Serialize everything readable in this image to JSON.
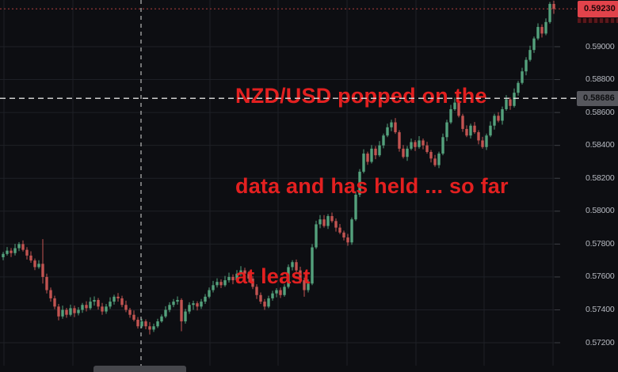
{
  "annotation": {
    "lines": [
      "NZD/USD popped on the",
      "data and has held ... so far",
      "at least"
    ],
    "color": "#e32020"
  },
  "price_axis": {
    "tick_labels": [
      "0.59000",
      "0.58800",
      "0.58600",
      "0.58400",
      "0.58200",
      "0.58000",
      "0.57800",
      "0.57600",
      "0.57400",
      "0.57200"
    ],
    "last_price_badge": {
      "text": "0.59230",
      "bg": "#e2434b",
      "fg": "#1d0709"
    },
    "level_badge": {
      "text": "0.58686",
      "bg": "#56575d",
      "fg": "#0d0e10"
    },
    "text_color": "#b6b9c0"
  },
  "colors": {
    "background": "#0d0e12",
    "grid": "#1e2026",
    "candle_up": "#54a17c",
    "candle_down": "#c25451",
    "current_price_line": "#9e3a3a",
    "level_line": "#e2e2e2",
    "session_line": "#c9c9c9",
    "tick_mark": "#3c3e44"
  },
  "chart_data": {
    "type": "candlestick",
    "instrument": "NZD/USD",
    "title": "NZD/USD popped on the data and has held ... so far at least",
    "ylim": [
      0.5702,
      0.59285
    ],
    "y_ticks": [
      0.59,
      0.588,
      0.586,
      0.584,
      0.582,
      0.58,
      0.578,
      0.576,
      0.574,
      0.572
    ],
    "current_price": 0.5923,
    "marked_level": 0.58686,
    "grid": true,
    "x_axis_labels_visible": false,
    "price_unit": 1e-05,
    "candles_ohlc_units": [
      [
        57720,
        57752,
        57702,
        57740
      ],
      [
        57740,
        57782,
        57730,
        57760
      ],
      [
        57760,
        57776,
        57721,
        57745
      ],
      [
        57745,
        57801,
        57731,
        57775
      ],
      [
        57775,
        57812,
        57757,
        57800
      ],
      [
        57800,
        57822,
        57755,
        57765
      ],
      [
        57765,
        57781,
        57706,
        57730
      ],
      [
        57730,
        57756,
        57686,
        57700
      ],
      [
        57700,
        57712,
        57642,
        57660
      ],
      [
        57660,
        57702,
        57650,
        57680
      ],
      [
        57680,
        57830,
        57560,
        57600
      ],
      [
        57600,
        57620,
        57500,
        57520
      ],
      [
        57520,
        57536,
        57450,
        57470
      ],
      [
        57470,
        57486,
        57404,
        57420
      ],
      [
        57420,
        57436,
        57336,
        57360
      ],
      [
        57360,
        57426,
        57346,
        57400
      ],
      [
        57400,
        57412,
        57352,
        57370
      ],
      [
        57370,
        57432,
        57360,
        57410
      ],
      [
        57410,
        57426,
        57356,
        57380
      ],
      [
        57380,
        57416,
        57366,
        57400
      ],
      [
        57400,
        57442,
        57382,
        57430
      ],
      [
        57430,
        57452,
        57390,
        57410
      ],
      [
        57410,
        57476,
        57400,
        57450
      ],
      [
        57450,
        57482,
        57426,
        57460
      ],
      [
        57460,
        57472,
        57402,
        57420
      ],
      [
        57420,
        57442,
        57370,
        57390
      ],
      [
        57390,
        57436,
        57376,
        57420
      ],
      [
        57420,
        57476,
        57406,
        57450
      ],
      [
        57450,
        57492,
        57432,
        57480
      ],
      [
        57480,
        57502,
        57450,
        57470
      ],
      [
        57470,
        57486,
        57416,
        57430
      ],
      [
        57430,
        57456,
        57386,
        57400
      ],
      [
        57400,
        57412,
        57352,
        57370
      ],
      [
        57370,
        57396,
        57330,
        57340
      ],
      [
        57340,
        57356,
        57286,
        57300
      ],
      [
        57300,
        57346,
        57290,
        57330
      ],
      [
        57330,
        57342,
        57282,
        57300
      ],
      [
        57300,
        57326,
        57250,
        57280
      ],
      [
        57280,
        57316,
        57266,
        57300
      ],
      [
        57300,
        57346,
        57290,
        57330
      ],
      [
        57330,
        57372,
        57322,
        57360
      ],
      [
        57360,
        57422,
        57350,
        57400
      ],
      [
        57400,
        57446,
        57386,
        57430
      ],
      [
        57430,
        57466,
        57416,
        57450
      ],
      [
        57450,
        57482,
        57432,
        57460
      ],
      [
        57460,
        57470,
        57270,
        57330
      ],
      [
        57330,
        57406,
        57316,
        57390
      ],
      [
        57390,
        57446,
        57376,
        57430
      ],
      [
        57430,
        57456,
        57400,
        57440
      ],
      [
        57440,
        57452,
        57396,
        57420
      ],
      [
        57420,
        57466,
        57406,
        57450
      ],
      [
        57450,
        57496,
        57436,
        57480
      ],
      [
        57480,
        57536,
        57470,
        57520
      ],
      [
        57520,
        57576,
        57506,
        57550
      ],
      [
        57550,
        57592,
        57536,
        57570
      ],
      [
        57570,
        57586,
        57532,
        57550
      ],
      [
        57550,
        57606,
        57540,
        57580
      ],
      [
        57580,
        57626,
        57566,
        57600
      ],
      [
        57600,
        57616,
        57556,
        57580
      ],
      [
        57580,
        57642,
        57570,
        57620
      ],
      [
        57620,
        57666,
        57606,
        57640
      ],
      [
        57640,
        57656,
        57596,
        57620
      ],
      [
        57620,
        57636,
        57566,
        57590
      ],
      [
        57590,
        57606,
        57526,
        57540
      ],
      [
        57540,
        57556,
        57466,
        57490
      ],
      [
        57490,
        57506,
        57436,
        57450
      ],
      [
        57450,
        57466,
        57400,
        57420
      ],
      [
        57420,
        57486,
        57410,
        57470
      ],
      [
        57470,
        57516,
        57456,
        57500
      ],
      [
        57500,
        57532,
        57476,
        57520
      ],
      [
        57520,
        57536,
        57472,
        57490
      ],
      [
        57490,
        57556,
        57480,
        57540
      ],
      [
        57540,
        57676,
        57530,
        57660
      ],
      [
        57660,
        57702,
        57640,
        57690
      ],
      [
        57690,
        57706,
        57620,
        57640
      ],
      [
        57640,
        57662,
        57560,
        57580
      ],
      [
        57580,
        57596,
        57480,
        57520
      ],
      [
        57520,
        57586,
        57506,
        57560
      ],
      [
        57560,
        57800,
        57550,
        57780
      ],
      [
        57780,
        57942,
        57770,
        57920
      ],
      [
        57920,
        57976,
        57896,
        57950
      ],
      [
        57950,
        57976,
        57900,
        57910
      ],
      [
        57910,
        57982,
        57892,
        57970
      ],
      [
        57970,
        57992,
        57930,
        57940
      ],
      [
        57940,
        57956,
        57876,
        57900
      ],
      [
        57900,
        57922,
        57860,
        57870
      ],
      [
        57870,
        57882,
        57822,
        57840
      ],
      [
        57840,
        57862,
        57790,
        57810
      ],
      [
        57810,
        57962,
        57796,
        57950
      ],
      [
        57950,
        58122,
        57940,
        58100
      ],
      [
        58100,
        58256,
        58086,
        58240
      ],
      [
        58240,
        58376,
        58230,
        58350
      ],
      [
        58350,
        58362,
        58282,
        58300
      ],
      [
        58300,
        58402,
        58290,
        58380
      ],
      [
        58380,
        58396,
        58316,
        58340
      ],
      [
        58340,
        58426,
        58330,
        58400
      ],
      [
        58400,
        58472,
        58382,
        58460
      ],
      [
        58460,
        58532,
        58450,
        58510
      ],
      [
        58510,
        58556,
        58486,
        58540
      ],
      [
        58540,
        58566,
        58470,
        58480
      ],
      [
        58480,
        58492,
        58362,
        58380
      ],
      [
        58380,
        58402,
        58320,
        58330
      ],
      [
        58330,
        58396,
        58306,
        58380
      ],
      [
        58380,
        58442,
        58370,
        58420
      ],
      [
        58420,
        58432,
        58366,
        58390
      ],
      [
        58390,
        58456,
        58380,
        58430
      ],
      [
        58430,
        58442,
        58376,
        58400
      ],
      [
        58400,
        58422,
        58350,
        58360
      ],
      [
        58360,
        58372,
        58296,
        58320
      ],
      [
        58320,
        58342,
        58270,
        58280
      ],
      [
        58280,
        58362,
        58262,
        58350
      ],
      [
        58350,
        58472,
        58340,
        58450
      ],
      [
        58450,
        58556,
        58426,
        58540
      ],
      [
        58540,
        58646,
        58530,
        58620
      ],
      [
        58620,
        58690,
        58610,
        58660
      ],
      [
        58660,
        58682,
        58570,
        58580
      ],
      [
        58580,
        58592,
        58482,
        58500
      ],
      [
        58500,
        58522,
        58450,
        58460
      ],
      [
        58460,
        58532,
        58442,
        58520
      ],
      [
        58520,
        58542,
        58470,
        58480
      ],
      [
        58480,
        58492,
        58406,
        58430
      ],
      [
        58430,
        58452,
        58380,
        58390
      ],
      [
        58390,
        58472,
        58372,
        58460
      ],
      [
        58460,
        58546,
        58450,
        58520
      ],
      [
        58520,
        58592,
        58496,
        58580
      ],
      [
        58580,
        58602,
        58540,
        58550
      ],
      [
        58550,
        58636,
        58526,
        58620
      ],
      [
        58620,
        58706,
        58610,
        58680
      ],
      [
        58680,
        58692,
        58616,
        58640
      ],
      [
        58640,
        58746,
        58630,
        58720
      ],
      [
        58720,
        58792,
        58702,
        58780
      ],
      [
        58780,
        58872,
        58770,
        58850
      ],
      [
        58850,
        58936,
        58826,
        58920
      ],
      [
        58920,
        59006,
        58910,
        58980
      ],
      [
        58980,
        59062,
        58962,
        59050
      ],
      [
        59050,
        59142,
        59040,
        59120
      ],
      [
        59120,
        59136,
        59056,
        59080
      ],
      [
        59080,
        59172,
        59070,
        59150
      ],
      [
        59150,
        59272,
        59140,
        59260
      ],
      [
        59260,
        59280,
        59200,
        59230
      ]
    ]
  }
}
